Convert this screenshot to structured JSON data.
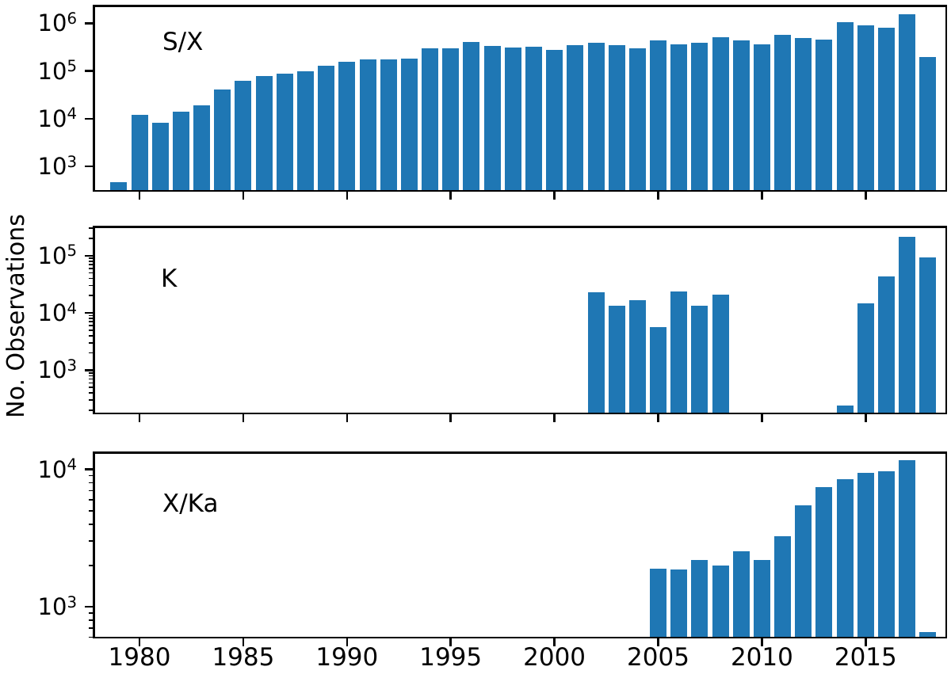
{
  "figure": {
    "ylabel": "No. Observations",
    "background": "#ffffff",
    "bar_color": "#1f77b4",
    "axis_color": "#000000"
  },
  "x_axis": {
    "tick_years": [
      1980,
      1985,
      1990,
      1995,
      2000,
      2005,
      2010,
      2015
    ],
    "tick_labels": [
      "1980",
      "1985",
      "1990",
      "1995",
      "2000",
      "2005",
      "2010",
      "2015"
    ],
    "year_range": [
      1979,
      2018
    ]
  },
  "chart_data": [
    {
      "type": "bar",
      "panel_label": "S/X",
      "yscale": "log",
      "ylabel": "No. Observations",
      "ylim": [
        293,
        2450000
      ],
      "y_tick_exponents": [
        3,
        4,
        5,
        6
      ],
      "y_tick_labels": [
        "10^3",
        "10^4",
        "10^5",
        "10^6"
      ],
      "x": [
        1979,
        1980,
        1981,
        1982,
        1983,
        1984,
        1985,
        1986,
        1987,
        1988,
        1989,
        1990,
        1991,
        1992,
        1993,
        1994,
        1995,
        1996,
        1997,
        1998,
        1999,
        2000,
        2001,
        2002,
        2003,
        2004,
        2005,
        2006,
        2007,
        2008,
        2009,
        2010,
        2011,
        2012,
        2013,
        2014,
        2015,
        2016,
        2017,
        2018
      ],
      "values": [
        460,
        12000,
        8200,
        14000,
        19000,
        41000,
        63000,
        77000,
        89000,
        100000,
        130000,
        155000,
        172000,
        172000,
        182000,
        300000,
        295000,
        400000,
        335000,
        310000,
        320000,
        280000,
        350000,
        390000,
        350000,
        300000,
        440000,
        365000,
        385000,
        510000,
        445000,
        365000,
        580000,
        490000,
        460000,
        1050000,
        920000,
        800000,
        1550000,
        200000
      ]
    },
    {
      "type": "bar",
      "panel_label": "K",
      "yscale": "log",
      "ylabel": "No. Observations",
      "ylim": [
        170,
        333000
      ],
      "y_tick_exponents": [
        3,
        4,
        5
      ],
      "y_tick_labels": [
        "10^3",
        "10^4",
        "10^5"
      ],
      "x": [
        2002,
        2003,
        2004,
        2005,
        2006,
        2007,
        2008,
        2014,
        2015,
        2016,
        2017,
        2018
      ],
      "values": [
        23000,
        13500,
        16500,
        5600,
        24000,
        13500,
        21000,
        240,
        14500,
        43000,
        210000,
        92000
      ]
    },
    {
      "type": "bar",
      "panel_label": "X/Ka",
      "yscale": "log",
      "ylabel": "No. Observations",
      "ylim": [
        588,
        13500
      ],
      "y_tick_exponents": [
        3,
        4
      ],
      "y_tick_labels": [
        "10^3",
        "10^4"
      ],
      "x": [
        2005,
        2006,
        2007,
        2008,
        2009,
        2010,
        2011,
        2012,
        2013,
        2014,
        2015,
        2016,
        2017,
        2018
      ],
      "values": [
        1900,
        1870,
        2200,
        2000,
        2550,
        2200,
        3250,
        5500,
        7400,
        8500,
        9500,
        9700,
        11700,
        650
      ]
    }
  ]
}
